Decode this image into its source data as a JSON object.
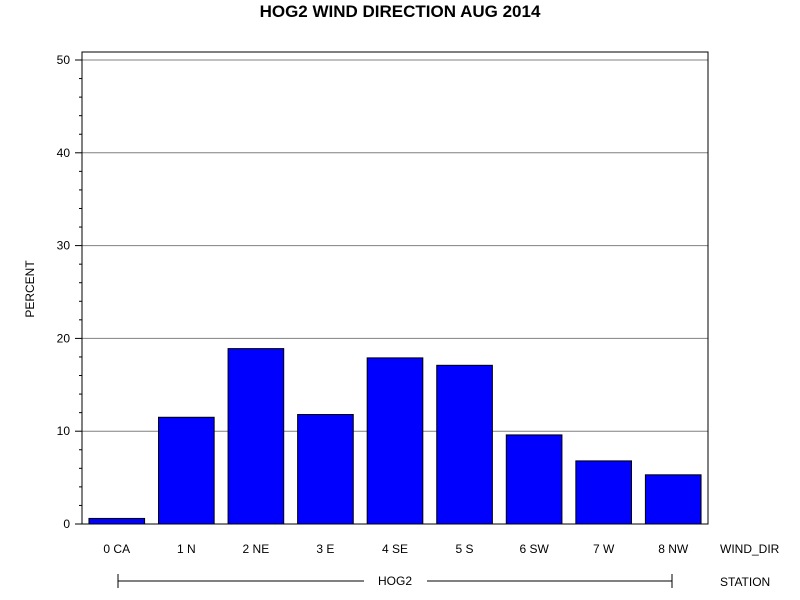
{
  "chart_data": {
    "type": "bar",
    "title": "HOG2 WIND DIRECTION AUG 2014",
    "ylabel": "PERCENT",
    "categories": [
      "0 CA",
      "1 N",
      "2 NE",
      "3 E",
      "4 SE",
      "5 S",
      "6 SW",
      "7 W",
      "8 NW"
    ],
    "category_axis_label": "WIND_DIR",
    "group_label": "HOG2",
    "group_axis_label": "STATION",
    "values": [
      0.6,
      11.5,
      18.9,
      11.8,
      17.9,
      17.1,
      9.6,
      6.8,
      5.3
    ],
    "ylim": [
      0,
      50
    ],
    "yticks": [
      0,
      10,
      20,
      30,
      40,
      50
    ],
    "grid": true,
    "bar_color": "#0000ff",
    "bar_edge_color": "#000000"
  }
}
